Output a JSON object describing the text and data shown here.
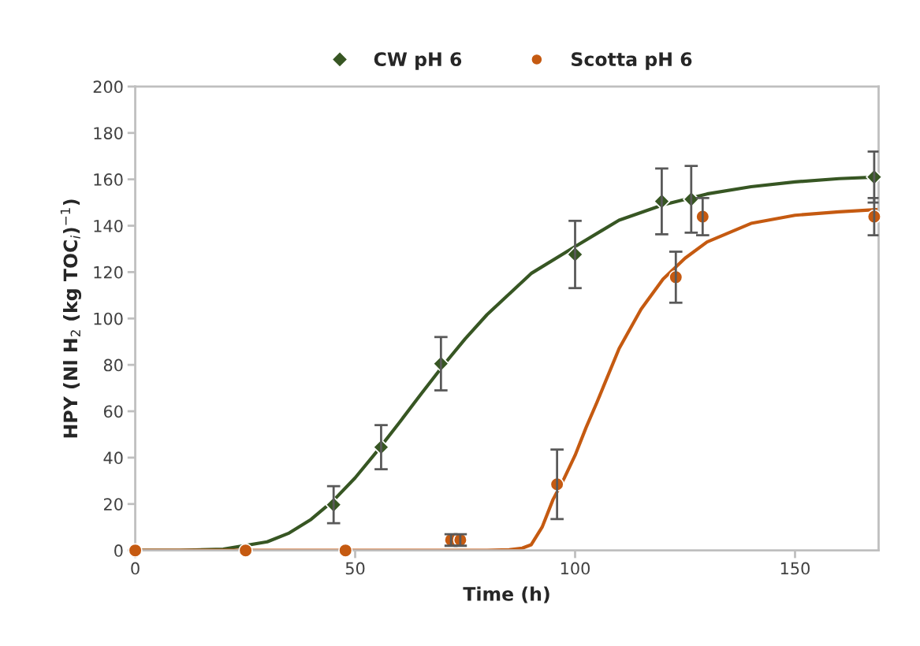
{
  "chart_data": {
    "type": "scatter",
    "xlabel": "Time (h)",
    "ylabel": "HPY (Nl H$_{2}$ (kg TOC$_{i}$)$^{−1}$)",
    "xlim": [
      0,
      169
    ],
    "xticks": [
      0,
      50,
      100,
      150
    ],
    "ylim": [
      0,
      200
    ],
    "yticks": [
      0,
      20,
      40,
      60,
      80,
      100,
      120,
      140,
      160,
      180,
      200
    ],
    "grid": false,
    "legend": "top",
    "series": [
      {
        "name": "CW pH 6",
        "marker": "diamond",
        "color": "#375623",
        "x": [
          45.1,
          55.9,
          69.5,
          100,
          119.7,
          126.4,
          168
        ],
        "values": [
          19.7,
          44.5,
          80.5,
          127.6,
          150.5,
          151.4,
          161
        ],
        "errors": [
          8,
          9.5,
          11.5,
          14.5,
          14.2,
          14.4,
          11
        ]
      },
      {
        "name": "Scotta pH 6",
        "marker": "circle",
        "color": "#c55a11",
        "x": [
          0,
          25.1,
          47.8,
          71.8,
          73.9,
          95.9,
          122.9,
          129,
          168
        ],
        "values": [
          0,
          0,
          0,
          4.5,
          4.5,
          28.5,
          117.8,
          143.9,
          143.9
        ],
        "errors": [
          null,
          null,
          null,
          2.5,
          2.5,
          15,
          11,
          8,
          8
        ]
      },
      {
        "type": "line",
        "marker": "none",
        "line_style": "solid",
        "color": "#375623",
        "x": [
          0,
          10,
          20,
          30,
          35,
          40,
          45,
          50,
          55,
          60,
          65,
          70,
          75,
          80,
          90,
          100,
          110,
          120,
          130,
          140,
          150,
          160,
          169
        ],
        "values": [
          0,
          0,
          0.5,
          3.7,
          7.5,
          13.4,
          21.4,
          31.3,
          42.8,
          55,
          67.5,
          79.7,
          91.2,
          101.7,
          119.4,
          131,
          142.4,
          149,
          153.7,
          156.8,
          158.9,
          160.3,
          161
        ]
      },
      {
        "type": "line",
        "marker": "none",
        "line_style": "solid",
        "color": "#c55a11",
        "x": [
          0,
          80,
          85,
          88,
          90,
          92.5,
          95,
          97.5,
          100,
          102.5,
          105,
          110,
          115,
          120,
          125,
          130,
          140,
          150,
          160,
          169
        ],
        "values": [
          0,
          0,
          0.3,
          1,
          2.4,
          10,
          22,
          31,
          41,
          53,
          64,
          87,
          104,
          117,
          126,
          133,
          141,
          144.5,
          146,
          147
        ]
      }
    ]
  }
}
